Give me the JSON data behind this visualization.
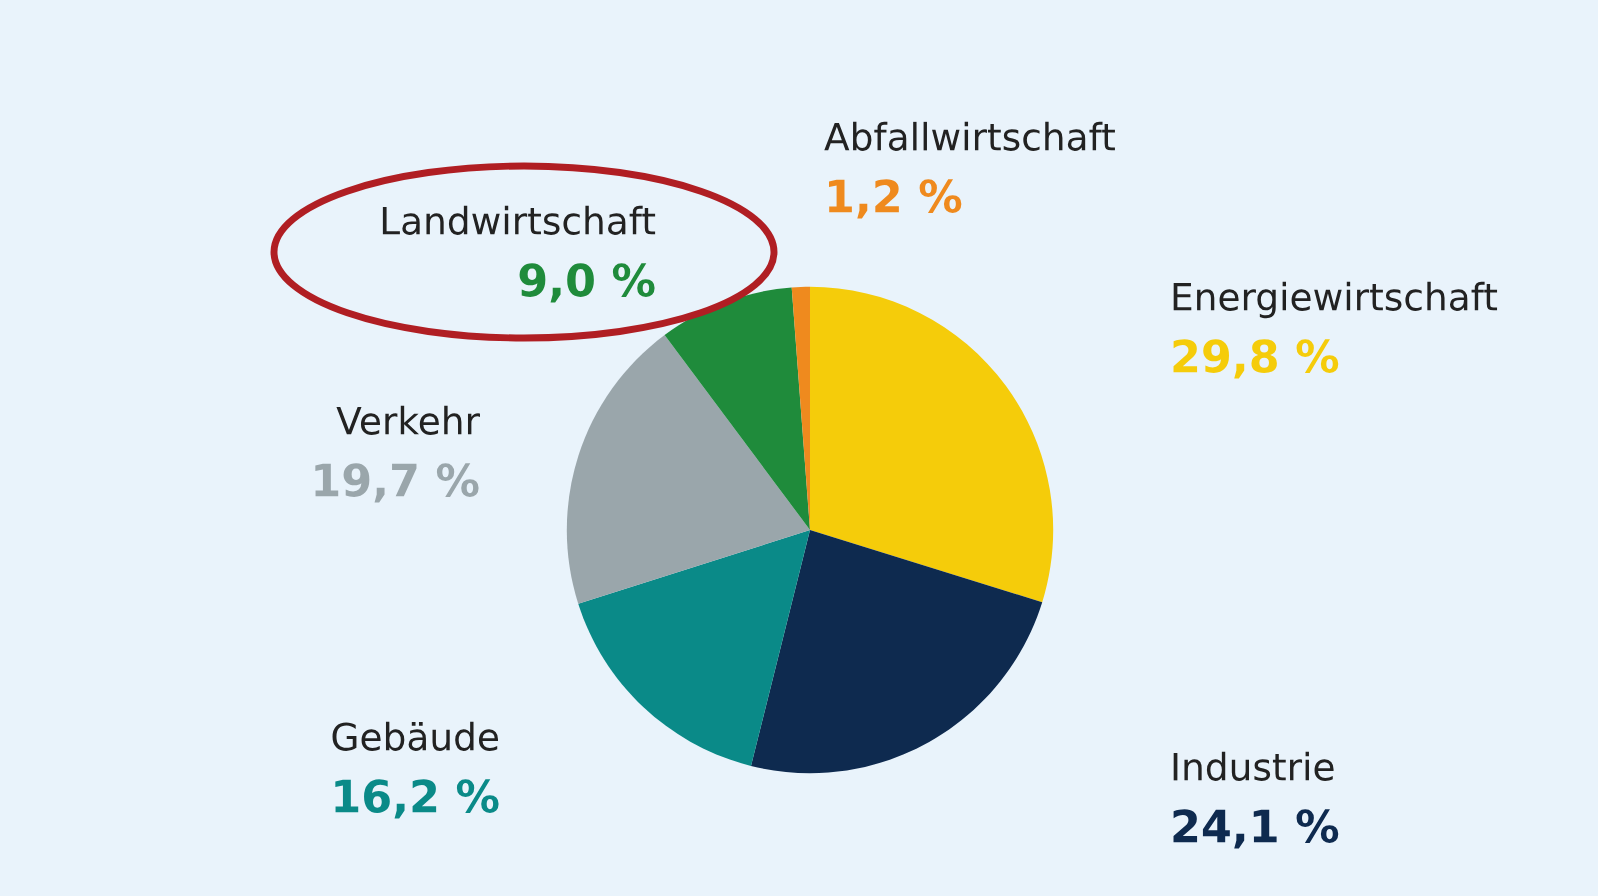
{
  "chart_data": {
    "type": "pie",
    "categories": [
      "Energiewirtschaft",
      "Industrie",
      "Gebäude",
      "Verkehr",
      "Landwirtschaft",
      "Abfallwirtschaft"
    ],
    "values": [
      29.8,
      24.1,
      16.2,
      19.7,
      9.0,
      1.2
    ],
    "value_labels": [
      "29,8 %",
      "24,1 %",
      "16,2 %",
      "19,7 %",
      "9,0 %",
      "1,2 %"
    ],
    "colors": [
      "#f5cc0a",
      "#0e2a4f",
      "#0a8a88",
      "#9aa6ab",
      "#1f8b3b",
      "#ef8a1e"
    ]
  }
}
